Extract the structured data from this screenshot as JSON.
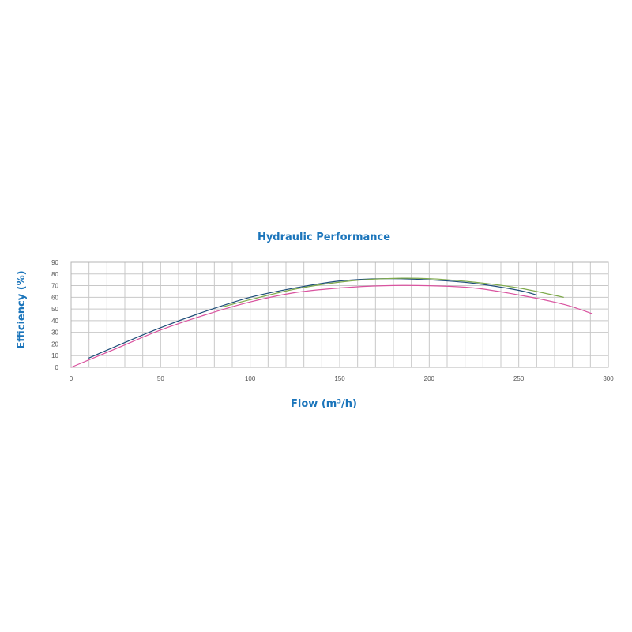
{
  "chart_data": {
    "type": "line",
    "title": "Hydraulic Performance",
    "xlabel": "Flow (m³/h)",
    "ylabel": "Efficiency (%)",
    "xlim": [
      0,
      300
    ],
    "ylim": [
      0,
      90
    ],
    "xticks": [
      0,
      50,
      100,
      150,
      200,
      250,
      300
    ],
    "yticks": [
      0,
      10,
      20,
      30,
      40,
      50,
      60,
      70,
      80,
      90
    ],
    "grid": true,
    "series": [
      {
        "color": "#1f4e79",
        "x": [
          10,
          25,
          50,
          75,
          100,
          125,
          150,
          175,
          200,
          225,
          250,
          260
        ],
        "y": [
          8,
          18,
          34,
          48,
          60,
          68,
          74,
          76,
          75,
          72,
          66,
          62
        ]
      },
      {
        "color": "#7faa4c",
        "x": [
          85,
          100,
          125,
          150,
          175,
          200,
          225,
          250,
          275
        ],
        "y": [
          52,
          58,
          67,
          73,
          76,
          76,
          73,
          68,
          60
        ]
      },
      {
        "color": "#d9539f",
        "x": [
          0,
          25,
          50,
          75,
          100,
          125,
          150,
          175,
          200,
          225,
          250,
          275,
          291
        ],
        "y": [
          0,
          16,
          32,
          45,
          56,
          64,
          68,
          70,
          70,
          68,
          62,
          54,
          46
        ]
      }
    ]
  }
}
